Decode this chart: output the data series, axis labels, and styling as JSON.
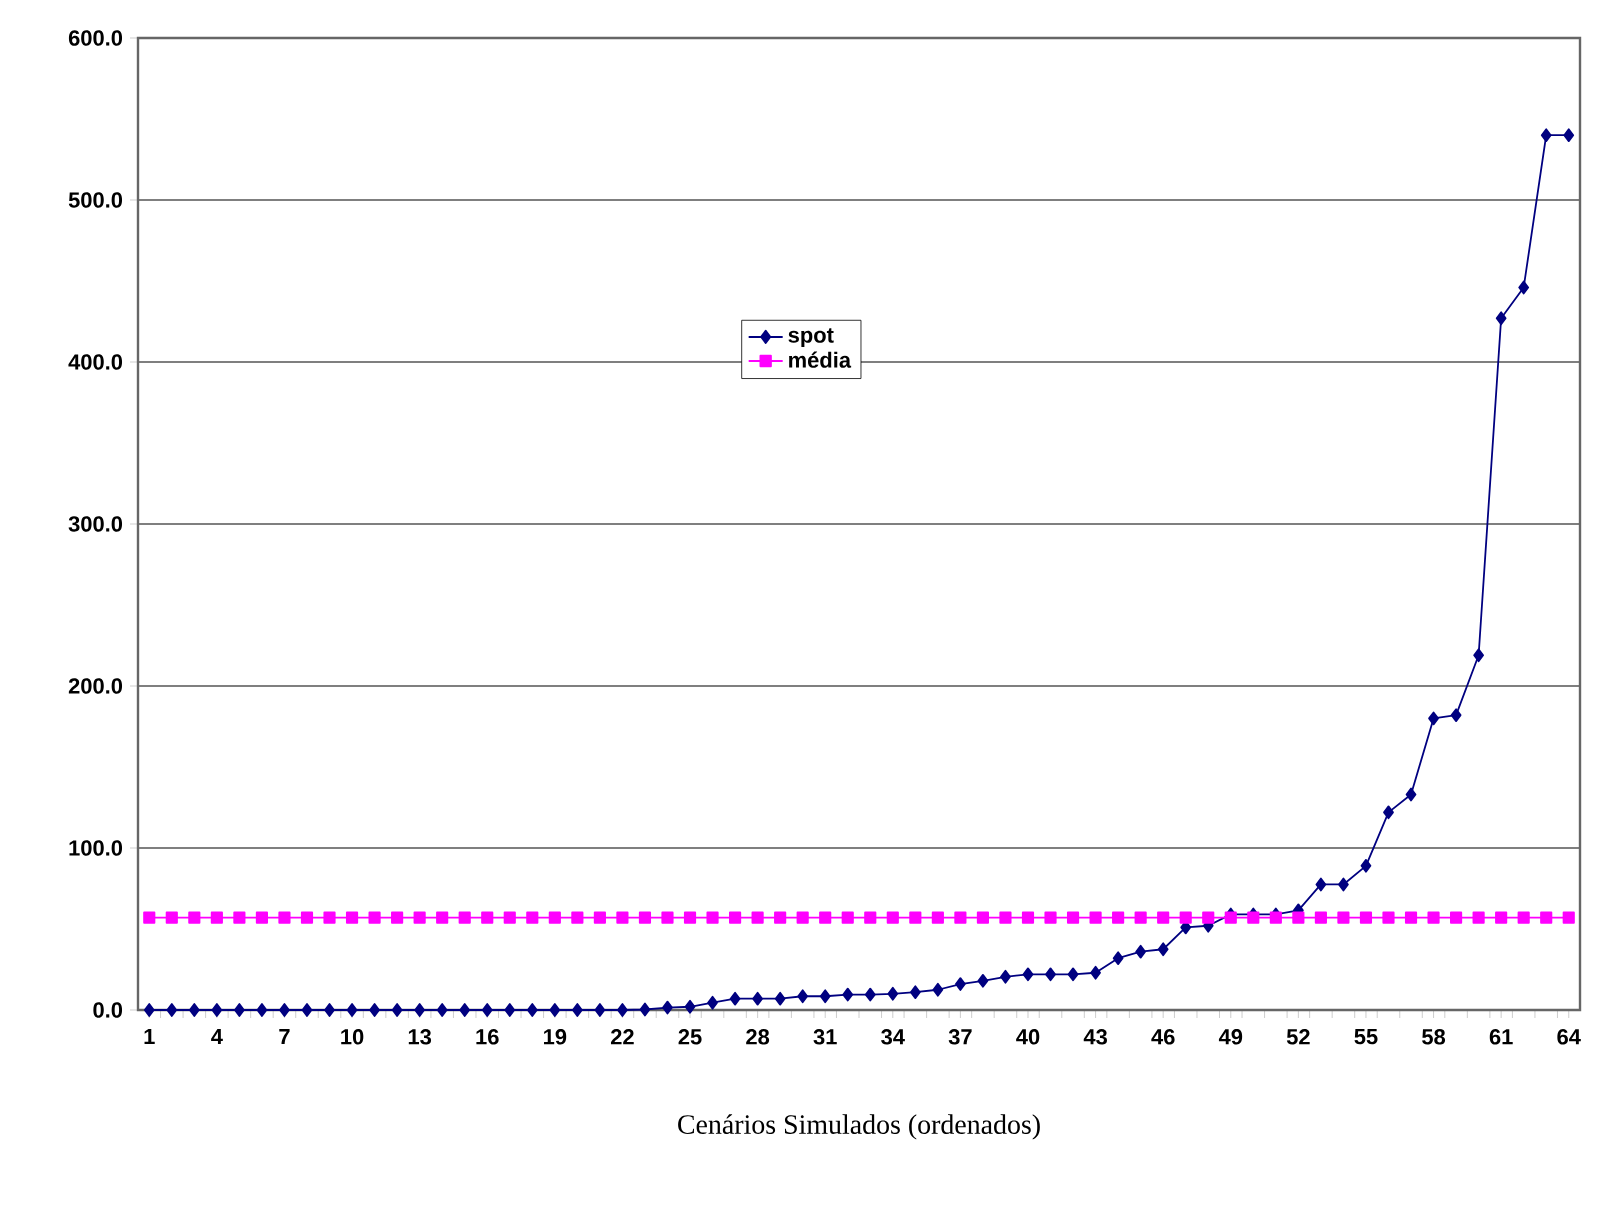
{
  "chart_data": {
    "type": "line",
    "xlabel": "Cenários Simulados (ordenados)",
    "categories": [
      "1",
      null,
      null,
      "4",
      null,
      null,
      "7",
      null,
      null,
      "10",
      null,
      null,
      "13",
      null,
      null,
      "16",
      null,
      null,
      "19",
      null,
      null,
      "22",
      null,
      null,
      "25",
      null,
      null,
      "28",
      null,
      null,
      "31",
      null,
      null,
      "34",
      null,
      null,
      "37",
      null,
      null,
      "40",
      null,
      null,
      "43",
      null,
      null,
      "46",
      null,
      null,
      "49",
      null,
      null,
      "52",
      null,
      null,
      "55",
      null,
      null,
      "58",
      null,
      null,
      "61",
      null,
      null,
      "64"
    ],
    "series": [
      {
        "name": "spot",
        "color": "#000080",
        "marker": "diamond",
        "values": [
          0,
          0,
          0,
          0,
          0,
          0,
          0,
          0,
          0,
          0,
          0,
          0,
          0,
          0,
          0,
          0,
          0,
          0,
          0,
          0,
          0,
          0,
          0.3,
          1.5,
          2,
          4.5,
          7,
          7,
          7,
          8.5,
          8.5,
          9.5,
          9.5,
          10,
          11,
          12.5,
          16,
          18,
          20.5,
          22,
          22,
          22,
          23,
          32,
          36,
          37.5,
          51,
          52,
          59,
          59,
          59,
          61.5,
          77.5,
          77.5,
          89,
          122,
          133,
          180,
          182,
          219,
          427,
          446,
          540,
          540
        ]
      },
      {
        "name": "média",
        "color": "#ff00ff",
        "marker": "square",
        "values": [
          57,
          57,
          57,
          57,
          57,
          57,
          57,
          57,
          57,
          57,
          57,
          57,
          57,
          57,
          57,
          57,
          57,
          57,
          57,
          57,
          57,
          57,
          57,
          57,
          57,
          57,
          57,
          57,
          57,
          57,
          57,
          57,
          57,
          57,
          57,
          57,
          57,
          57,
          57,
          57,
          57,
          57,
          57,
          57,
          57,
          57,
          57,
          57,
          57,
          57,
          57,
          57,
          57,
          57,
          57,
          57,
          57,
          57,
          57,
          57,
          57,
          57,
          57,
          57
        ]
      }
    ],
    "ylim": [
      0,
      600
    ],
    "yticks": [
      {
        "value": 0,
        "label": "0.0"
      },
      {
        "value": 100,
        "label": "100.0"
      },
      {
        "value": 200,
        "label": "200.0"
      },
      {
        "value": 300,
        "label": "300.0"
      },
      {
        "value": 400,
        "label": "400.0"
      },
      {
        "value": 500,
        "label": "500.0"
      },
      {
        "value": 600,
        "label": "600.0"
      }
    ],
    "grid": "y",
    "legend": "top"
  }
}
